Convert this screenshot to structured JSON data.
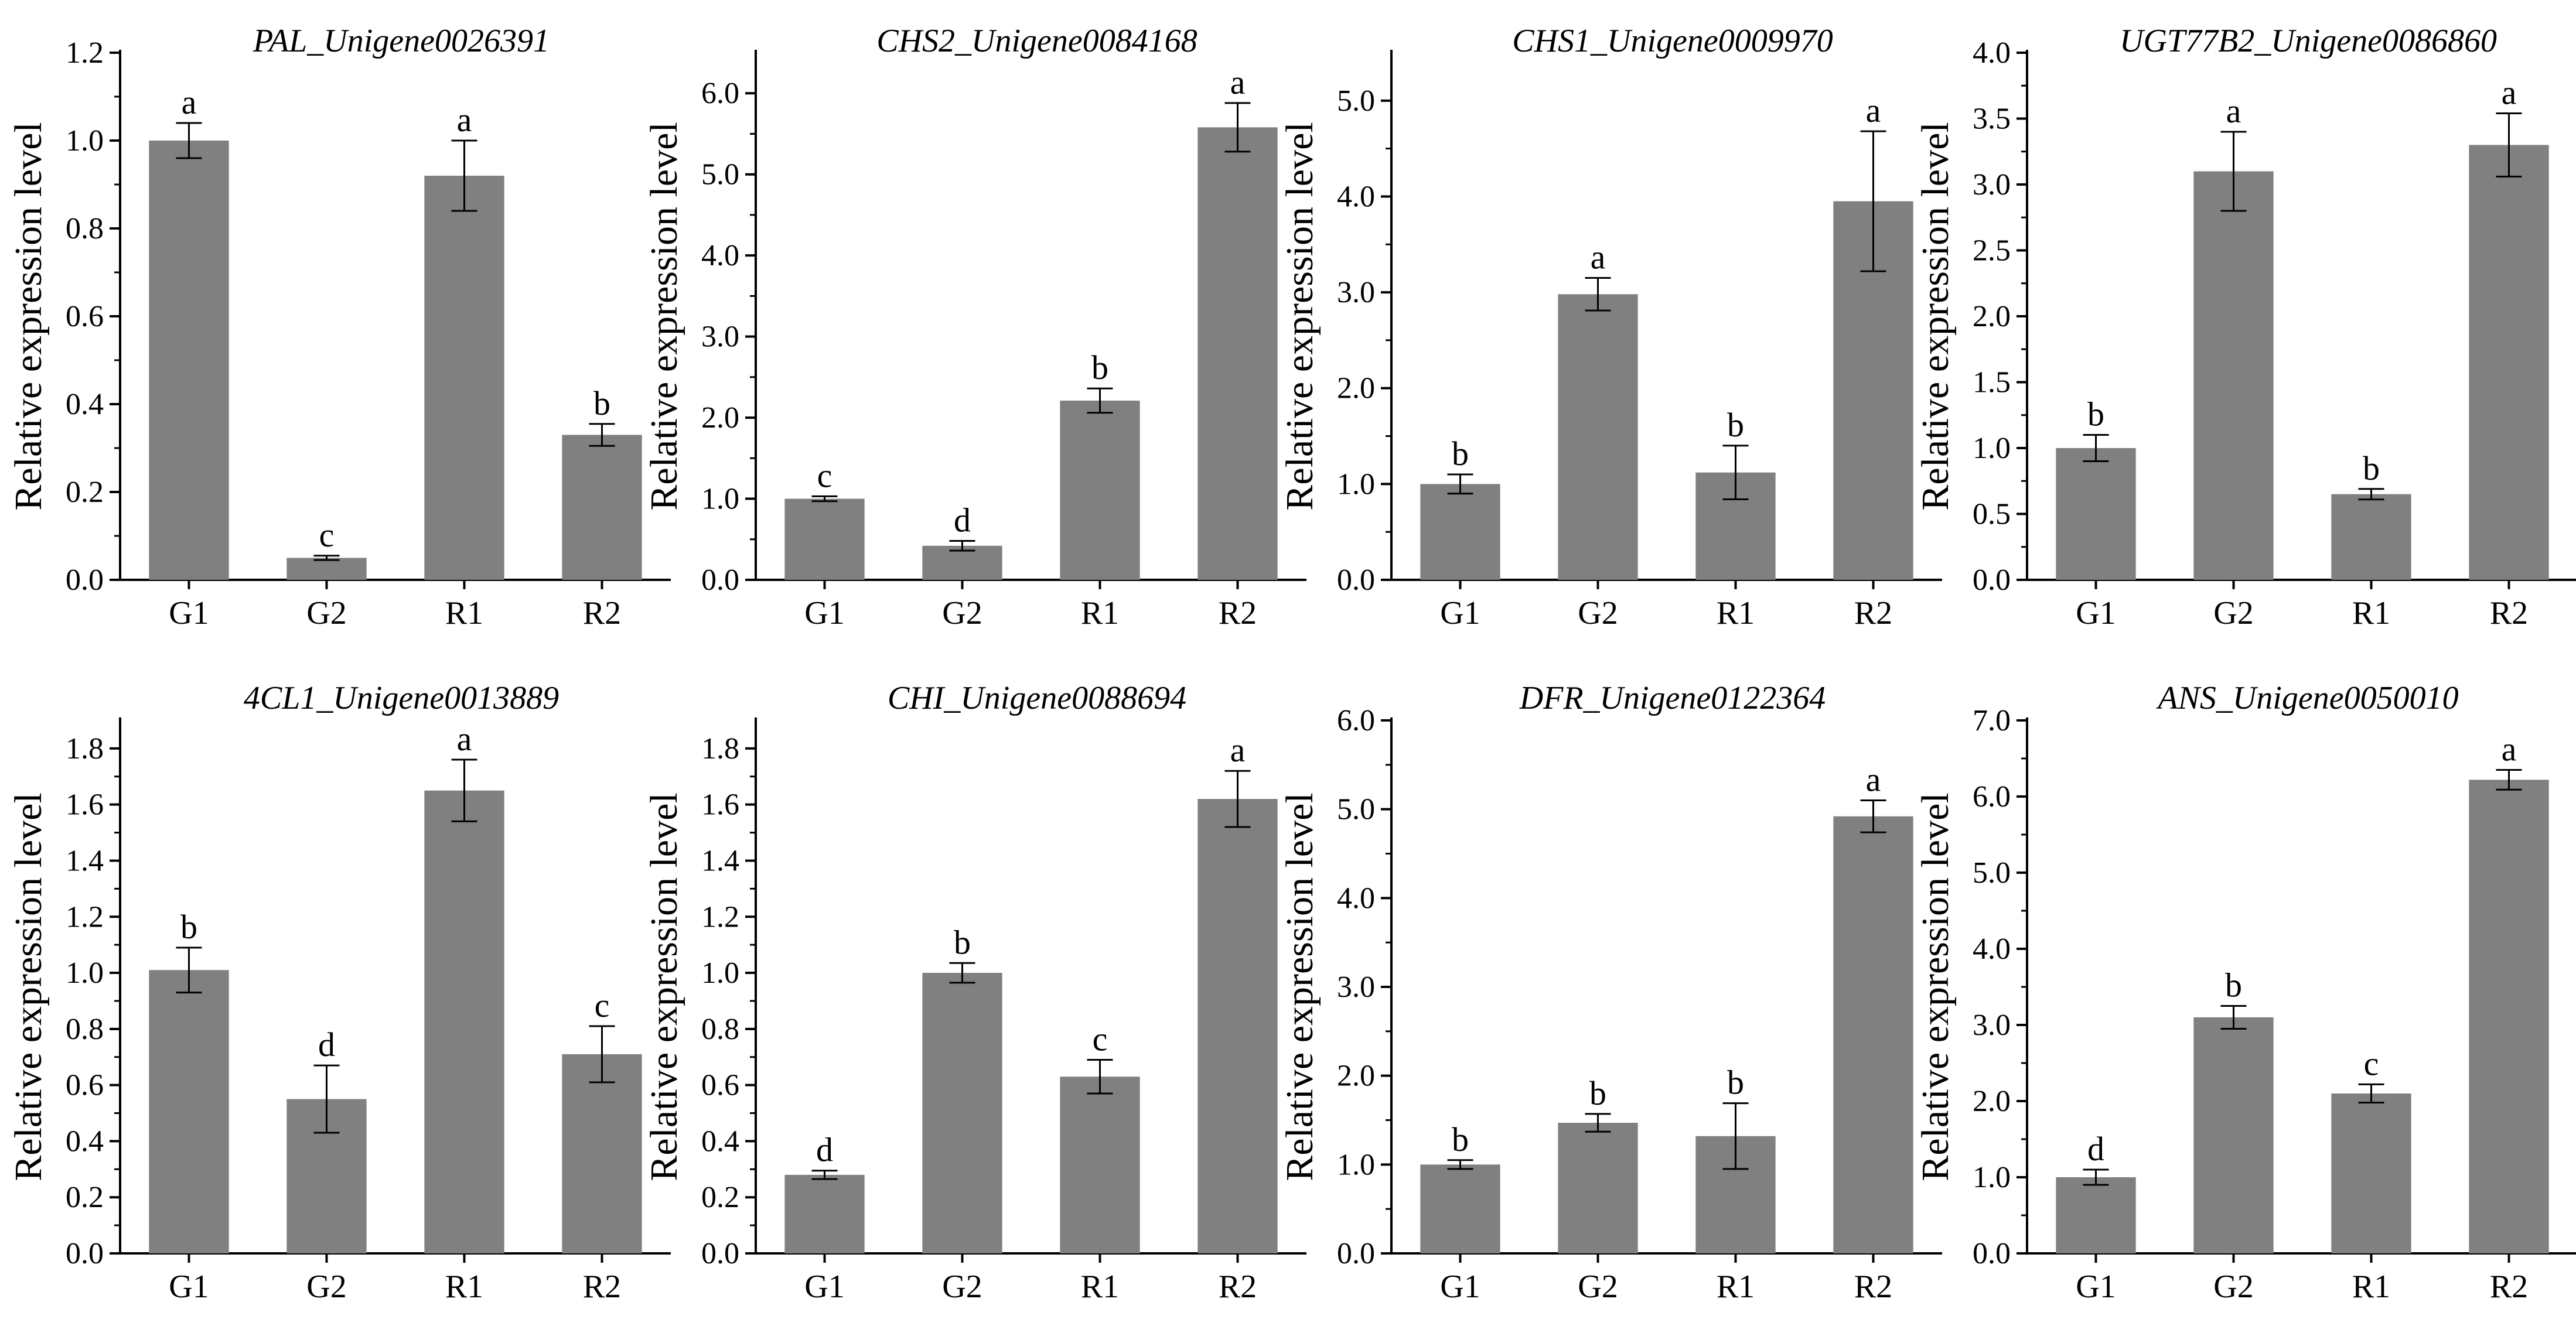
{
  "figure": {
    "bar_color": "#808080",
    "axis_color": "#000000",
    "background": "#ffffff"
  },
  "chart_data": [
    {
      "type": "bar",
      "title": "PAL_Unigene0026391",
      "ylabel": "Relative expression level",
      "xlabel": "",
      "categories": [
        "G1",
        "G2",
        "R1",
        "R2"
      ],
      "values": [
        1.0,
        0.05,
        0.92,
        0.33
      ],
      "errors": [
        0.04,
        0.005,
        0.08,
        0.025
      ],
      "significance": [
        "a",
        "c",
        "a",
        "b"
      ],
      "ylim": [
        0,
        1.2
      ],
      "yticks": [
        0.0,
        0.2,
        0.4,
        0.6,
        0.8,
        1.0,
        1.2
      ],
      "ytick_labels": [
        "0.0",
        "0.2",
        "0.4",
        "0.6",
        "0.8",
        "1.0",
        "1.2"
      ]
    },
    {
      "type": "bar",
      "title": "CHS2_Unigene0084168",
      "ylabel": "Relative expression level",
      "xlabel": "",
      "categories": [
        "G1",
        "G2",
        "R1",
        "R2"
      ],
      "values": [
        1.0,
        0.42,
        2.21,
        5.58
      ],
      "errors": [
        0.03,
        0.06,
        0.15,
        0.3
      ],
      "significance": [
        "c",
        "d",
        "b",
        "a"
      ],
      "ylim": [
        0,
        6.5
      ],
      "yticks": [
        0.0,
        1.0,
        2.0,
        3.0,
        4.0,
        5.0,
        6.0
      ],
      "ytick_labels": [
        "0.0",
        "1.0",
        "2.0",
        "3.0",
        "4.0",
        "5.0",
        "6.0"
      ]
    },
    {
      "type": "bar",
      "title": "CHS1_Unigene0009970",
      "ylabel": "Relative expression level",
      "xlabel": "",
      "categories": [
        "G1",
        "G2",
        "R1",
        "R2"
      ],
      "values": [
        1.0,
        2.98,
        1.12,
        3.95
      ],
      "errors": [
        0.1,
        0.17,
        0.28,
        0.73
      ],
      "significance": [
        "b",
        "a",
        "b",
        "a"
      ],
      "ylim": [
        0,
        5.5
      ],
      "yticks": [
        0.0,
        1.0,
        2.0,
        3.0,
        4.0,
        5.0
      ],
      "ytick_labels": [
        "0.0",
        "1.0",
        "2.0",
        "3.0",
        "4.0",
        "5.0"
      ]
    },
    {
      "type": "bar",
      "title": "UGT77B2_Unigene0086860",
      "ylabel": "Relative expression level",
      "xlabel": "",
      "categories": [
        "G1",
        "G2",
        "R1",
        "R2"
      ],
      "values": [
        1.0,
        3.1,
        0.65,
        3.3
      ],
      "errors": [
        0.1,
        0.3,
        0.04,
        0.24
      ],
      "significance": [
        "b",
        "a",
        "b",
        "a"
      ],
      "ylim": [
        0,
        4.0
      ],
      "yticks": [
        0.0,
        0.5,
        1.0,
        1.5,
        2.0,
        2.5,
        3.0,
        3.5,
        4.0
      ],
      "ytick_labels": [
        "0.0",
        "0.5",
        "1.0",
        "1.5",
        "2.0",
        "2.5",
        "3.0",
        "3.5",
        "4.0"
      ]
    },
    {
      "type": "bar",
      "title": "4CL1_Unigene0013889",
      "ylabel": "Relative expression level",
      "xlabel": "",
      "categories": [
        "G1",
        "G2",
        "R1",
        "R2"
      ],
      "values": [
        1.01,
        0.55,
        1.65,
        0.71
      ],
      "errors": [
        0.08,
        0.12,
        0.11,
        0.1
      ],
      "significance": [
        "b",
        "d",
        "a",
        "c"
      ],
      "ylim": [
        0,
        1.9
      ],
      "yticks": [
        0.0,
        0.2,
        0.4,
        0.6,
        0.8,
        1.0,
        1.2,
        1.4,
        1.6,
        1.8
      ],
      "ytick_labels": [
        "0.0",
        "0.2",
        "0.4",
        "0.6",
        "0.8",
        "1.0",
        "1.2",
        "1.4",
        "1.6",
        "1.8"
      ]
    },
    {
      "type": "bar",
      "title": "CHI_Unigene0088694",
      "ylabel": "Relative expression level",
      "xlabel": "",
      "categories": [
        "G1",
        "G2",
        "R1",
        "R2"
      ],
      "values": [
        0.28,
        1.0,
        0.63,
        1.62
      ],
      "errors": [
        0.015,
        0.035,
        0.06,
        0.1
      ],
      "significance": [
        "d",
        "b",
        "c",
        "a"
      ],
      "ylim": [
        0,
        1.9
      ],
      "yticks": [
        0.0,
        0.2,
        0.4,
        0.6,
        0.8,
        1.0,
        1.2,
        1.4,
        1.6,
        1.8
      ],
      "ytick_labels": [
        "0.0",
        "0.2",
        "0.4",
        "0.6",
        "0.8",
        "1.0",
        "1.2",
        "1.4",
        "1.6",
        "1.8"
      ]
    },
    {
      "type": "bar",
      "title": "DFR_Unigene0122364",
      "ylabel": "Relative expression level",
      "xlabel": "",
      "categories": [
        "G1",
        "G2",
        "R1",
        "R2"
      ],
      "values": [
        1.0,
        1.47,
        1.32,
        4.92
      ],
      "errors": [
        0.05,
        0.1,
        0.37,
        0.18
      ],
      "significance": [
        "b",
        "b",
        "b",
        "a"
      ],
      "ylim": [
        0,
        6.0
      ],
      "yticks": [
        0.0,
        1.0,
        2.0,
        3.0,
        4.0,
        5.0,
        6.0
      ],
      "ytick_labels": [
        "0.0",
        "1.0",
        "2.0",
        "3.0",
        "4.0",
        "5.0",
        "6.0"
      ]
    },
    {
      "type": "bar",
      "title": "ANS_Unigene0050010",
      "ylabel": "Relative expression level",
      "xlabel": "",
      "categories": [
        "G1",
        "G2",
        "R1",
        "R2"
      ],
      "values": [
        1.0,
        3.1,
        2.1,
        6.22
      ],
      "errors": [
        0.1,
        0.15,
        0.12,
        0.13
      ],
      "significance": [
        "d",
        "b",
        "c",
        "a"
      ],
      "ylim": [
        0,
        7.0
      ],
      "yticks": [
        0.0,
        1.0,
        2.0,
        3.0,
        4.0,
        5.0,
        6.0,
        7.0
      ],
      "ytick_labels": [
        "0.0",
        "1.0",
        "2.0",
        "3.0",
        "4.0",
        "5.0",
        "6.0",
        "7.0"
      ]
    }
  ]
}
